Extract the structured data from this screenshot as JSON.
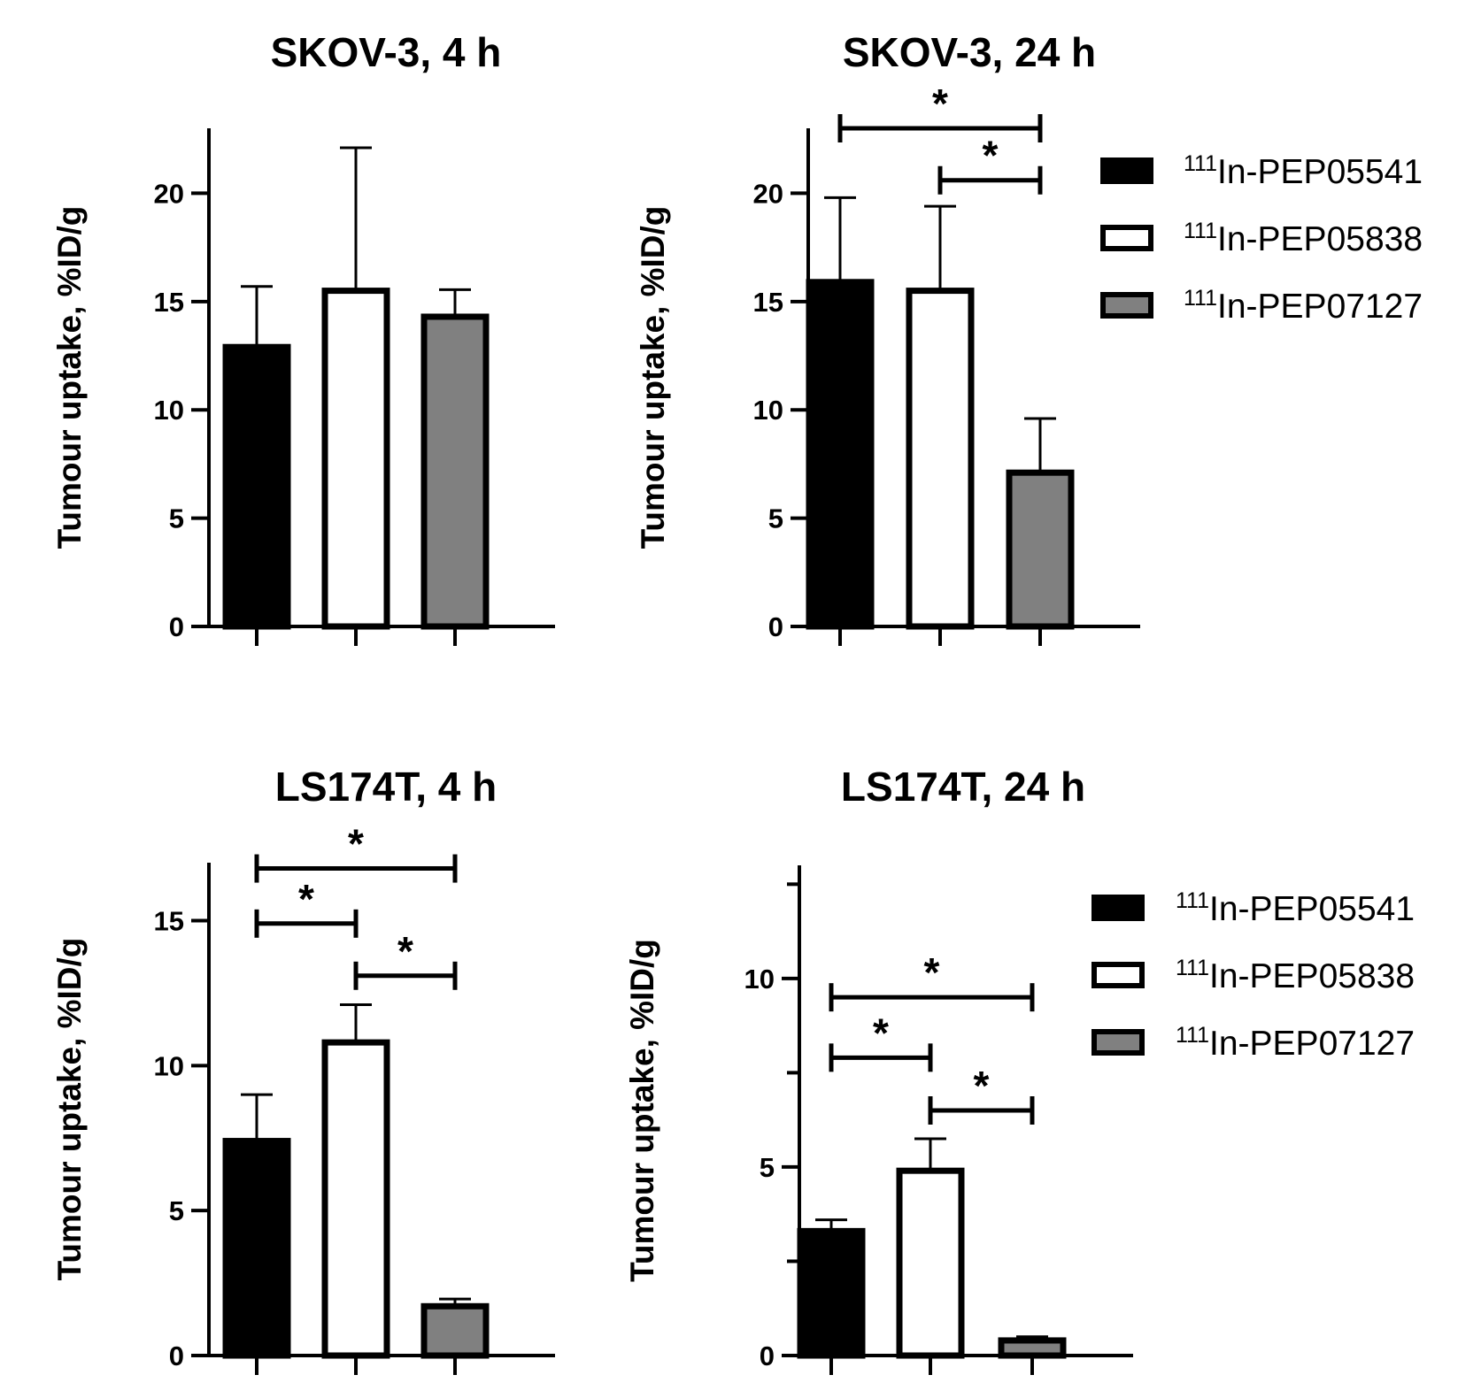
{
  "chart_data": [
    {
      "type": "bar",
      "title": "SKOV-3, 4 h",
      "ylabel": "Tumour uptake, %ID/g",
      "xlabel": "",
      "ylim": [
        0,
        23
      ],
      "yticks": [
        0,
        5,
        10,
        15,
        20
      ],
      "series": [
        {
          "name": "111In-PEP05541",
          "value": 12.9,
          "error": 2.8,
          "fill": "#000000"
        },
        {
          "name": "111In-PEP05838",
          "value": 15.5,
          "error": 6.6,
          "fill": "#ffffff"
        },
        {
          "name": "111In-PEP07127",
          "value": 14.3,
          "error": 1.25,
          "fill": "#808080"
        }
      ],
      "significance": [],
      "legend": false
    },
    {
      "type": "bar",
      "title": "SKOV-3, 24 h",
      "ylabel": "Tumour uptake, %ID/g",
      "xlabel": "",
      "ylim": [
        0,
        23
      ],
      "yticks": [
        0,
        5,
        10,
        15,
        20
      ],
      "series": [
        {
          "name": "111In-PEP05541",
          "value": 15.9,
          "error": 3.9,
          "fill": "#000000"
        },
        {
          "name": "111In-PEP05838",
          "value": 15.5,
          "error": 3.9,
          "fill": "#ffffff"
        },
        {
          "name": "111In-PEP07127",
          "value": 7.1,
          "error": 2.5,
          "fill": "#808080"
        }
      ],
      "significance": [
        {
          "from": 0,
          "to": 2,
          "level": 23.0,
          "label": "*"
        },
        {
          "from": 1,
          "to": 2,
          "level": 20.6,
          "label": "*"
        }
      ],
      "legend": true
    },
    {
      "type": "bar",
      "title": "LS174T, 4 h",
      "ylabel": "Tumour uptake, %ID/g",
      "xlabel": "",
      "ylim": [
        0,
        17
      ],
      "yticks": [
        0,
        5,
        10,
        15
      ],
      "series": [
        {
          "name": "111In-PEP05541",
          "value": 7.4,
          "error": 1.6,
          "fill": "#000000"
        },
        {
          "name": "111In-PEP05838",
          "value": 10.8,
          "error": 1.3,
          "fill": "#ffffff"
        },
        {
          "name": "111In-PEP07127",
          "value": 1.7,
          "error": 0.25,
          "fill": "#808080"
        }
      ],
      "significance": [
        {
          "from": 0,
          "to": 2,
          "level": 16.8,
          "label": "*"
        },
        {
          "from": 0,
          "to": 1,
          "level": 14.9,
          "label": "*"
        },
        {
          "from": 1,
          "to": 2,
          "level": 13.1,
          "label": "*"
        }
      ],
      "legend": false
    },
    {
      "type": "bar",
      "title": "LS174T, 24 h",
      "ylabel": "Tumour uptake, %ID/g",
      "xlabel": "",
      "ylim": [
        0,
        13
      ],
      "yticks": [
        0,
        5,
        10
      ],
      "minor_yticks": [
        2.5,
        7.5,
        12.5
      ],
      "series": [
        {
          "name": "111In-PEP05541",
          "value": 3.3,
          "error": 0.3,
          "fill": "#000000"
        },
        {
          "name": "111In-PEP05838",
          "value": 4.9,
          "error": 0.85,
          "fill": "#ffffff"
        },
        {
          "name": "111In-PEP07127",
          "value": 0.4,
          "error": 0.1,
          "fill": "#808080"
        }
      ],
      "significance": [
        {
          "from": 0,
          "to": 2,
          "level": 9.5,
          "label": "*"
        },
        {
          "from": 0,
          "to": 1,
          "level": 7.9,
          "label": "*"
        },
        {
          "from": 1,
          "to": 2,
          "level": 6.5,
          "label": "*"
        }
      ],
      "legend": true
    }
  ],
  "legend": [
    {
      "sup": "111",
      "label": "In-PEP05541",
      "fill": "#000000"
    },
    {
      "sup": "111",
      "label": "In-PEP05838",
      "fill": "#ffffff"
    },
    {
      "sup": "111",
      "label": "In-PEP07127",
      "fill": "#808080"
    }
  ]
}
